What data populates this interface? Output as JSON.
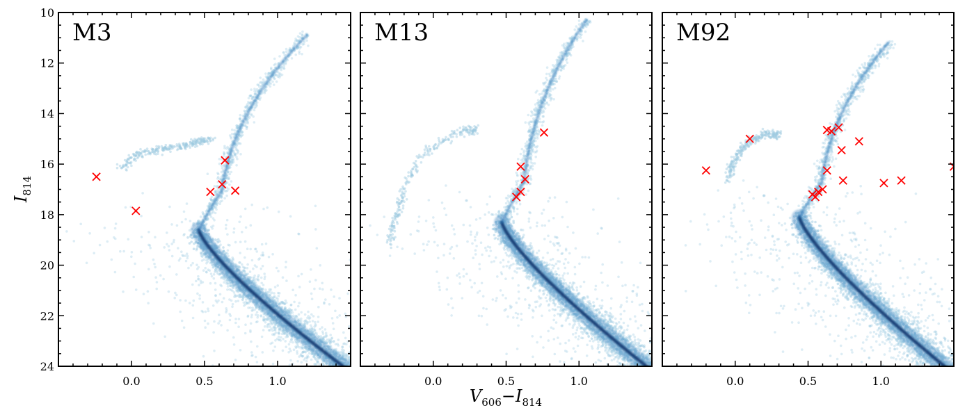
{
  "chart_data": {
    "type": "scatter",
    "xlabel": "V606−I814",
    "xlabel_main": "V",
    "xlabel_sub1": "606",
    "xlabel_minus": "−I",
    "xlabel_sub2": "814",
    "ylabel": "I814",
    "ylabel_main": "I",
    "ylabel_sub": "814",
    "xlim": [
      -0.5,
      1.5
    ],
    "ylim": [
      24,
      10
    ],
    "x_ticks": [
      0.0,
      0.5,
      1.0
    ],
    "x_tick_labels": [
      "0.0",
      "0.5",
      "1.0"
    ],
    "y_ticks": [
      10,
      12,
      14,
      16,
      18,
      20,
      22,
      24
    ],
    "y_tick_labels": [
      "10",
      "12",
      "14",
      "16",
      "18",
      "20",
      "22",
      "24"
    ],
    "density_color": "#2171b5",
    "marker_color": "#ff0000",
    "panels": [
      {
        "name": "M3",
        "ms_turnoff": [
          0.46,
          18.6
        ],
        "rgb_tip": [
          1.2,
          10.9
        ],
        "hb_points": [
          [
            -0.08,
            16.2
          ],
          [
            0.05,
            15.6
          ],
          [
            0.2,
            15.4
          ],
          [
            0.35,
            15.3
          ],
          [
            0.45,
            15.1
          ],
          [
            0.55,
            15.0
          ]
        ],
        "markers": [
          [
            -0.24,
            16.5
          ],
          [
            0.03,
            17.85
          ],
          [
            0.54,
            17.1
          ],
          [
            0.62,
            16.8
          ],
          [
            0.64,
            15.85
          ],
          [
            0.71,
            17.05
          ]
        ]
      },
      {
        "name": "M13",
        "ms_turnoff": [
          0.47,
          18.3
        ],
        "rgb_tip": [
          1.05,
          10.3
        ],
        "hb_points": [
          [
            -0.3,
            19.2
          ],
          [
            -0.25,
            18.0
          ],
          [
            -0.2,
            17.0
          ],
          [
            -0.1,
            15.8
          ],
          [
            0.05,
            15.1
          ],
          [
            0.2,
            14.7
          ],
          [
            0.3,
            14.6
          ]
        ],
        "markers": [
          [
            0.6,
            16.1
          ],
          [
            0.63,
            16.6
          ],
          [
            0.6,
            17.1
          ],
          [
            0.57,
            17.3
          ],
          [
            0.76,
            14.75
          ]
        ]
      },
      {
        "name": "M92",
        "ms_turnoff": [
          0.44,
          18.1
        ],
        "rgb_tip": [
          1.05,
          11.2
        ],
        "hb_points": [
          [
            -0.05,
            16.6
          ],
          [
            0.0,
            15.8
          ],
          [
            0.08,
            15.2
          ],
          [
            0.2,
            14.8
          ],
          [
            0.3,
            14.85
          ]
        ],
        "markers": [
          [
            -0.2,
            16.25
          ],
          [
            0.1,
            15.0
          ],
          [
            0.53,
            17.2
          ],
          [
            0.55,
            17.3
          ],
          [
            0.57,
            17.1
          ],
          [
            0.6,
            17.0
          ],
          [
            0.63,
            16.25
          ],
          [
            0.63,
            14.65
          ],
          [
            0.66,
            14.7
          ],
          [
            0.71,
            14.55
          ],
          [
            0.73,
            15.45
          ],
          [
            0.74,
            16.65
          ],
          [
            0.85,
            15.1
          ],
          [
            1.02,
            16.75
          ],
          [
            1.14,
            16.65
          ],
          [
            1.5,
            16.1
          ]
        ]
      }
    ]
  }
}
